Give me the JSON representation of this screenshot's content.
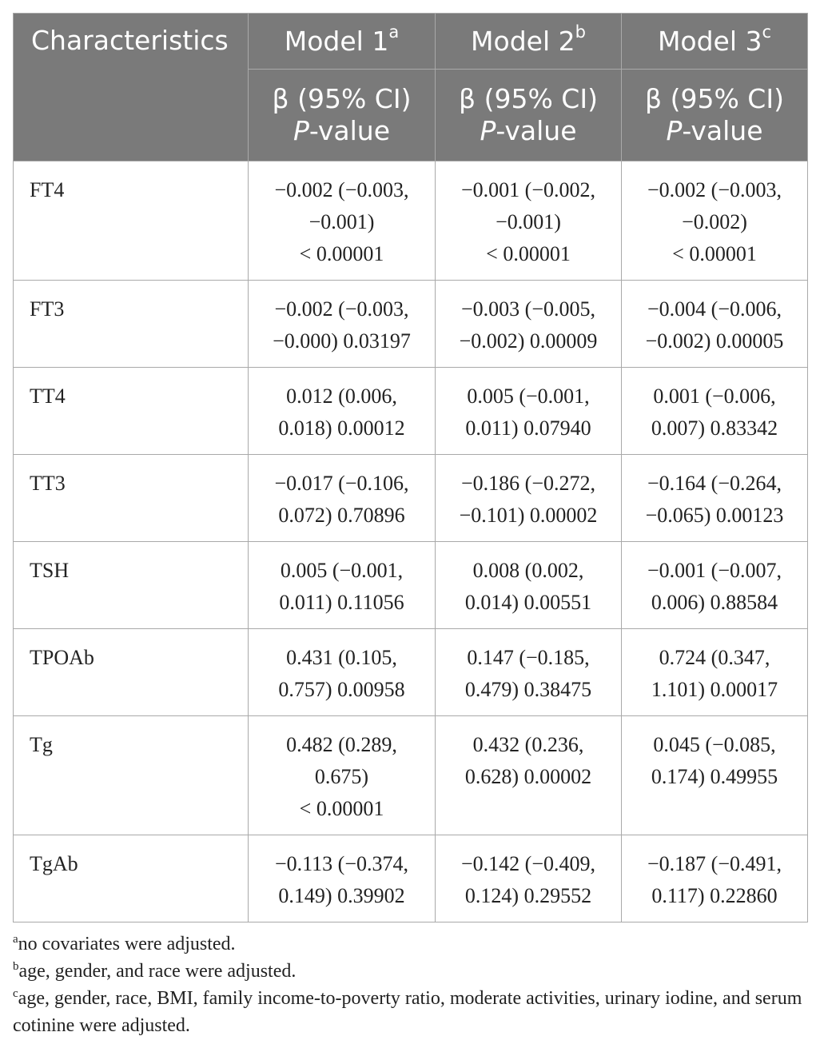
{
  "table": {
    "header": {
      "characteristics": "Characteristics",
      "models": [
        {
          "label": "Model 1",
          "mark": "a"
        },
        {
          "label": "Model 2",
          "mark": "b"
        },
        {
          "label": "Model 3",
          "mark": "c"
        }
      ],
      "subheader_line1": "β (95% CI)",
      "subheader_p": "P",
      "subheader_value": "-value"
    },
    "rows": [
      {
        "name": "FT4",
        "m1": [
          "−0.002 (−0.003,",
          "−0.001)",
          "< 0.00001"
        ],
        "m2": [
          "−0.001 (−0.002,",
          "−0.001)",
          "< 0.00001"
        ],
        "m3": [
          "−0.002 (−0.003,",
          "−0.002)",
          "< 0.00001"
        ]
      },
      {
        "name": "FT3",
        "m1": [
          "−0.002 (−0.003,",
          "−0.000) 0.03197"
        ],
        "m2": [
          "−0.003 (−0.005,",
          "−0.002) 0.00009"
        ],
        "m3": [
          "−0.004 (−0.006,",
          "−0.002) 0.00005"
        ]
      },
      {
        "name": "TT4",
        "m1": [
          "0.012 (0.006,",
          "0.018) 0.00012"
        ],
        "m2": [
          "0.005 (−0.001,",
          "0.011) 0.07940"
        ],
        "m3": [
          "0.001 (−0.006,",
          "0.007) 0.83342"
        ]
      },
      {
        "name": "TT3",
        "m1": [
          "−0.017 (−0.106,",
          "0.072) 0.70896"
        ],
        "m2": [
          "−0.186 (−0.272,",
          "−0.101) 0.00002"
        ],
        "m3": [
          "−0.164 (−0.264,",
          "−0.065) 0.00123"
        ]
      },
      {
        "name": "TSH",
        "m1": [
          "0.005 (−0.001,",
          "0.011) 0.11056"
        ],
        "m2": [
          "0.008 (0.002,",
          "0.014) 0.00551"
        ],
        "m3": [
          "−0.001 (−0.007,",
          "0.006) 0.88584"
        ]
      },
      {
        "name": "TPOAb",
        "m1": [
          "0.431 (0.105,",
          "0.757) 0.00958"
        ],
        "m2": [
          "0.147 (−0.185,",
          "0.479) 0.38475"
        ],
        "m3": [
          "0.724 (0.347,",
          "1.101) 0.00017"
        ]
      },
      {
        "name": "Tg",
        "m1": [
          "0.482 (0.289,",
          "0.675)",
          "< 0.00001"
        ],
        "m2": [
          "0.432 (0.236,",
          "0.628) 0.00002"
        ],
        "m3": [
          "0.045 (−0.085,",
          "0.174) 0.49955"
        ]
      },
      {
        "name": "TgAb",
        "m1": [
          "−0.113 (−0.374,",
          "0.149) 0.39902"
        ],
        "m2": [
          "−0.142 (−0.409,",
          "0.124) 0.29552"
        ],
        "m3": [
          "−0.187 (−0.491,",
          "0.117) 0.22860"
        ]
      }
    ]
  },
  "footnotes": [
    {
      "mark": "a",
      "text": "no covariates were adjusted."
    },
    {
      "mark": "b",
      "text": "age, gender, and race were adjusted."
    },
    {
      "mark": "c",
      "text": "age, gender, race, BMI, family income-to-poverty ratio, moderate activities, urinary iodine, and serum cotinine were adjusted."
    }
  ]
}
